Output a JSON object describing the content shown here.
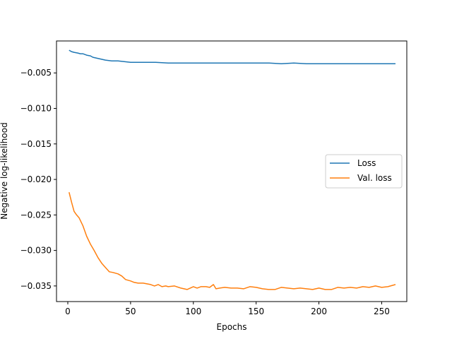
{
  "chart_data": {
    "type": "line",
    "title": "",
    "xlabel": "Epochs",
    "ylabel": "Negative log-likelihood",
    "xlim": [
      -9,
      270
    ],
    "ylim": [
      -0.0372,
      -0.0005
    ],
    "xticks": [
      0,
      50,
      100,
      150,
      200,
      250
    ],
    "xtick_labels": [
      "0",
      "50",
      "100",
      "150",
      "200",
      "250"
    ],
    "yticks": [
      -0.035,
      -0.03,
      -0.025,
      -0.02,
      -0.015,
      -0.01,
      -0.005
    ],
    "ytick_labels": [
      "−0.035",
      "−0.030",
      "−0.025",
      "−0.020",
      "−0.015",
      "−0.010",
      "−0.005"
    ],
    "grid": false,
    "legend_position": "center-right",
    "series": [
      {
        "name": "Loss",
        "color": "#1f77b4",
        "x": [
          1,
          3,
          5,
          8,
          10,
          12,
          15,
          18,
          20,
          25,
          30,
          35,
          40,
          45,
          50,
          60,
          70,
          80,
          90,
          100,
          110,
          120,
          130,
          140,
          150,
          160,
          170,
          180,
          190,
          200,
          210,
          220,
          230,
          240,
          250,
          261
        ],
        "y": [
          -0.0018,
          -0.002,
          -0.0021,
          -0.0022,
          -0.0023,
          -0.0023,
          -0.0025,
          -0.0026,
          -0.0028,
          -0.003,
          -0.0032,
          -0.0033,
          -0.0033,
          -0.0034,
          -0.0035,
          -0.0035,
          -0.0035,
          -0.0036,
          -0.0036,
          -0.0036,
          -0.0036,
          -0.0036,
          -0.0036,
          -0.0036,
          -0.0036,
          -0.0036,
          -0.0037,
          -0.0036,
          -0.0037,
          -0.0037,
          -0.0037,
          -0.0037,
          -0.0037,
          -0.0037,
          -0.0037,
          -0.0037
        ]
      },
      {
        "name": "Val. loss",
        "color": "#ff7f0e",
        "x": [
          1,
          3,
          5,
          7,
          9,
          12,
          15,
          18,
          21,
          24,
          27,
          30,
          33,
          36,
          40,
          43,
          46,
          50,
          53,
          56,
          60,
          63,
          66,
          69,
          72,
          75,
          78,
          80,
          85,
          90,
          95,
          100,
          103,
          106,
          110,
          113,
          116,
          118,
          121,
          125,
          130,
          135,
          140,
          145,
          150,
          155,
          160,
          165,
          170,
          175,
          180,
          185,
          190,
          195,
          200,
          205,
          210,
          215,
          220,
          225,
          230,
          235,
          240,
          245,
          250,
          255,
          261
        ],
        "y": [
          -0.0218,
          -0.0232,
          -0.0245,
          -0.025,
          -0.0254,
          -0.0265,
          -0.028,
          -0.0291,
          -0.03,
          -0.031,
          -0.0318,
          -0.0324,
          -0.033,
          -0.0331,
          -0.0333,
          -0.0336,
          -0.0341,
          -0.0343,
          -0.0345,
          -0.0346,
          -0.0346,
          -0.0347,
          -0.0348,
          -0.035,
          -0.0348,
          -0.0351,
          -0.035,
          -0.0351,
          -0.035,
          -0.0353,
          -0.0355,
          -0.0351,
          -0.0353,
          -0.0351,
          -0.0351,
          -0.0352,
          -0.0348,
          -0.0354,
          -0.0353,
          -0.0352,
          -0.0353,
          -0.0353,
          -0.0354,
          -0.0351,
          -0.0352,
          -0.0354,
          -0.0355,
          -0.0355,
          -0.0352,
          -0.0353,
          -0.0354,
          -0.0353,
          -0.0354,
          -0.0355,
          -0.0353,
          -0.0355,
          -0.0355,
          -0.0352,
          -0.0353,
          -0.0352,
          -0.0353,
          -0.0351,
          -0.0352,
          -0.035,
          -0.0352,
          -0.0351,
          -0.0348
        ]
      }
    ]
  }
}
